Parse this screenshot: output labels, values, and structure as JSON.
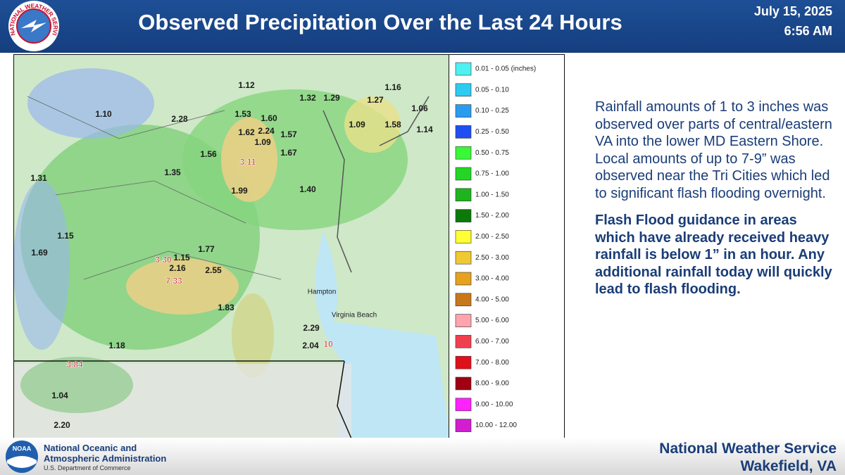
{
  "header": {
    "title": "Observed Precipitation Over the Last 24 Hours",
    "date": "July 15, 2025",
    "time": "6:56 AM",
    "logo_text": "NATIONAL WEATHER SERVICE"
  },
  "map": {
    "rainfall_labels": [
      "1.12",
      "1.32",
      "1.29",
      "1.16",
      "1.27",
      "1.06",
      "1.10",
      "2.28",
      "1.53",
      "1.60",
      "1.62",
      "2.24",
      "1.57",
      "1.09",
      "1.09",
      "1.58",
      "1.14",
      "1.56",
      "1.67",
      "3.11",
      "1.35",
      "1.31",
      "1.99",
      "1.40",
      "1.15",
      "1.69",
      "3.30",
      "1.15",
      "1.77",
      "2.16",
      "2.55",
      "7.33",
      "1.83",
      "2.29",
      "2.04",
      "10",
      "1.18",
      "3.84",
      "1.04",
      "2.20"
    ],
    "places": [
      "Hampton",
      "Virginia Beach"
    ],
    "legend": [
      {
        "label": "0.01 - 0.05 (inches)",
        "color": "#4ef0f0"
      },
      {
        "label": "0.05 - 0.10",
        "color": "#2ccbf2"
      },
      {
        "label": "0.10 - 0.25",
        "color": "#2a9cf0"
      },
      {
        "label": "0.25 - 0.50",
        "color": "#1f4ef2"
      },
      {
        "label": "0.50 - 0.75",
        "color": "#38f838"
      },
      {
        "label": "0.75 - 1.00",
        "color": "#24d624"
      },
      {
        "label": "1.00 - 1.50",
        "color": "#1eb41e"
      },
      {
        "label": "1.50 - 2.00",
        "color": "#0b7a0b"
      },
      {
        "label": "2.00 - 2.50",
        "color": "#ffff33"
      },
      {
        "label": "2.50 - 3.00",
        "color": "#f0c832"
      },
      {
        "label": "3.00 - 4.00",
        "color": "#e6a21e"
      },
      {
        "label": "4.00 - 5.00",
        "color": "#c8781a"
      },
      {
        "label": "5.00 - 6.00",
        "color": "#ffa4ac"
      },
      {
        "label": "6.00 - 7.00",
        "color": "#f04050"
      },
      {
        "label": "7.00 - 8.00",
        "color": "#e0101a"
      },
      {
        "label": "8.00 - 9.00",
        "color": "#a00012"
      },
      {
        "label": "9.00 - 10.00",
        "color": "#ff22ff"
      },
      {
        "label": "10.00 - 12.00",
        "color": "#d01ed0"
      }
    ]
  },
  "body": {
    "paragraph_1": "Rainfall amounts of 1 to 3 inches was observed over parts of central/eastern VA into the lower MD Eastern Shore. Local amounts of up to 7-9” was observed near the Tri Cities which led to significant flash flooding overnight.",
    "paragraph_2": "Flash Flood guidance in areas which have already received heavy rainfall is below 1” in an hour. Any additional rainfall today will quickly lead to flash flooding."
  },
  "footer": {
    "noaa_logo": "NOAA",
    "noaa_line_1": "National Oceanic and",
    "noaa_line_2": "Atmospheric Administration",
    "noaa_line_3": "U.S. Department of Commerce",
    "office_line_1": "National Weather Service",
    "office_line_2": "Wakefield, VA"
  }
}
